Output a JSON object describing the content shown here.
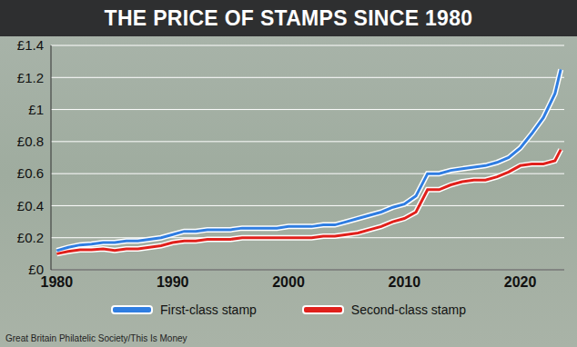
{
  "chart_data": {
    "type": "line",
    "title": "THE PRICE OF STAMPS SINCE 1980",
    "source": "Great Britain Philatelic Society/This Is Money",
    "x": [
      1980,
      1981,
      1982,
      1983,
      1984,
      1985,
      1986,
      1987,
      1988,
      1989,
      1990,
      1991,
      1992,
      1993,
      1994,
      1995,
      1996,
      1997,
      1998,
      1999,
      2000,
      2001,
      2002,
      2003,
      2004,
      2005,
      2006,
      2007,
      2008,
      2009,
      2010,
      2011,
      2012,
      2013,
      2014,
      2015,
      2016,
      2017,
      2018,
      2019,
      2020,
      2021,
      2022,
      2023,
      2023.5
    ],
    "series": [
      {
        "name": "First-class stamp",
        "color": "#2f7de1",
        "values": [
          0.12,
          0.14,
          0.155,
          0.16,
          0.17,
          0.17,
          0.18,
          0.18,
          0.19,
          0.2,
          0.22,
          0.24,
          0.24,
          0.25,
          0.25,
          0.25,
          0.26,
          0.26,
          0.26,
          0.26,
          0.27,
          0.27,
          0.27,
          0.28,
          0.28,
          0.3,
          0.32,
          0.34,
          0.36,
          0.39,
          0.41,
          0.46,
          0.6,
          0.6,
          0.62,
          0.63,
          0.64,
          0.65,
          0.67,
          0.7,
          0.76,
          0.85,
          0.95,
          1.1,
          1.25
        ]
      },
      {
        "name": "Second-class stamp",
        "color": "#e0201b",
        "values": [
          0.1,
          0.115,
          0.125,
          0.125,
          0.13,
          0.12,
          0.13,
          0.13,
          0.14,
          0.15,
          0.17,
          0.18,
          0.18,
          0.19,
          0.19,
          0.19,
          0.2,
          0.2,
          0.2,
          0.2,
          0.2,
          0.2,
          0.2,
          0.21,
          0.21,
          0.22,
          0.23,
          0.25,
          0.27,
          0.3,
          0.32,
          0.36,
          0.5,
          0.5,
          0.53,
          0.55,
          0.56,
          0.56,
          0.58,
          0.61,
          0.65,
          0.66,
          0.66,
          0.68,
          0.75
        ]
      }
    ],
    "xlim": [
      1979.5,
      2023.8
    ],
    "xticks": [
      1980,
      1990,
      2000,
      2010,
      2020
    ],
    "ylim": [
      0,
      1.4
    ],
    "yticks": [
      {
        "value": 0,
        "label": "£0"
      },
      {
        "value": 0.2,
        "label": "£0.2"
      },
      {
        "value": 0.4,
        "label": "£0.4"
      },
      {
        "value": 0.6,
        "label": "£0.6"
      },
      {
        "value": 0.8,
        "label": "£0.8"
      },
      {
        "value": 1,
        "label": "£1"
      },
      {
        "value": 1.2,
        "label": "£1.2"
      },
      {
        "value": 1.4,
        "label": "£1.4"
      }
    ],
    "grid": true,
    "legend": "bottom"
  }
}
